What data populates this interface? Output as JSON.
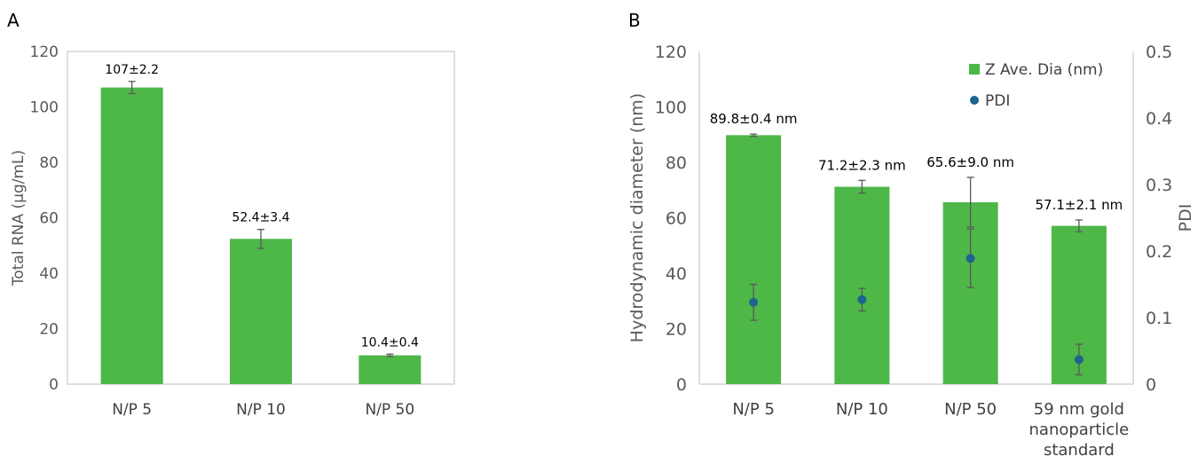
{
  "panels": {
    "a": {
      "letter": "A"
    },
    "b": {
      "letter": "B"
    }
  },
  "colors": {
    "bar": "#4db748",
    "pdi_point": "#1f6391",
    "error_bar": "#595959",
    "axis": "#bfbfbf"
  },
  "chart_data": [
    {
      "type": "bar",
      "panel": "A",
      "categories": [
        "N/P 5",
        "N/P 10",
        "N/P 50"
      ],
      "values": [
        107,
        52.4,
        10.4
      ],
      "errors": [
        2.2,
        3.4,
        0.4
      ],
      "data_labels": [
        "107±2.2",
        "52.4±3.4",
        "10.4±0.4"
      ],
      "ylabel": "Total RNA (µg/mL)",
      "xlabel": "",
      "ylim": [
        0,
        120
      ],
      "yticks": [
        0,
        20,
        40,
        60,
        80,
        100,
        120
      ],
      "grid": false,
      "frame": true
    },
    {
      "type": "bar",
      "panel": "B",
      "categories": [
        "N/P 5",
        "N/P 10",
        "N/P 50",
        "59 nm gold nanoparticle standard"
      ],
      "category_lines": [
        [
          "N/P 5"
        ],
        [
          "N/P 10"
        ],
        [
          "N/P 50"
        ],
        [
          "59 nm gold",
          "nanoparticle",
          "standard"
        ]
      ],
      "series": [
        {
          "name": "Z Ave. Dia (nm)",
          "kind": "bar",
          "axis": "left",
          "values": [
            89.8,
            71.2,
            65.6,
            57.1
          ],
          "errors": [
            0.4,
            2.3,
            9.0,
            2.1
          ],
          "data_labels": [
            "89.8±0.4 nm",
            "71.2±2.3 nm",
            "65.6±9.0 nm",
            "57.1±2.1 nm"
          ]
        },
        {
          "name": "PDI",
          "kind": "scatter",
          "axis": "right",
          "values": [
            0.123,
            0.127,
            0.189,
            0.037
          ],
          "errors": [
            0.027,
            0.017,
            0.044,
            0.023
          ]
        }
      ],
      "ylabel": "Hydrodynamic diameter (nm)",
      "ylabel_right": "PDI",
      "ylim": [
        0,
        120
      ],
      "ylim_right": [
        0,
        0.5
      ],
      "yticks": [
        0,
        20,
        40,
        60,
        80,
        100,
        120
      ],
      "yticks_right": [
        0,
        0.1,
        0.2,
        0.3,
        0.4,
        0.5
      ],
      "legend_position": "top-right",
      "grid": false
    }
  ]
}
